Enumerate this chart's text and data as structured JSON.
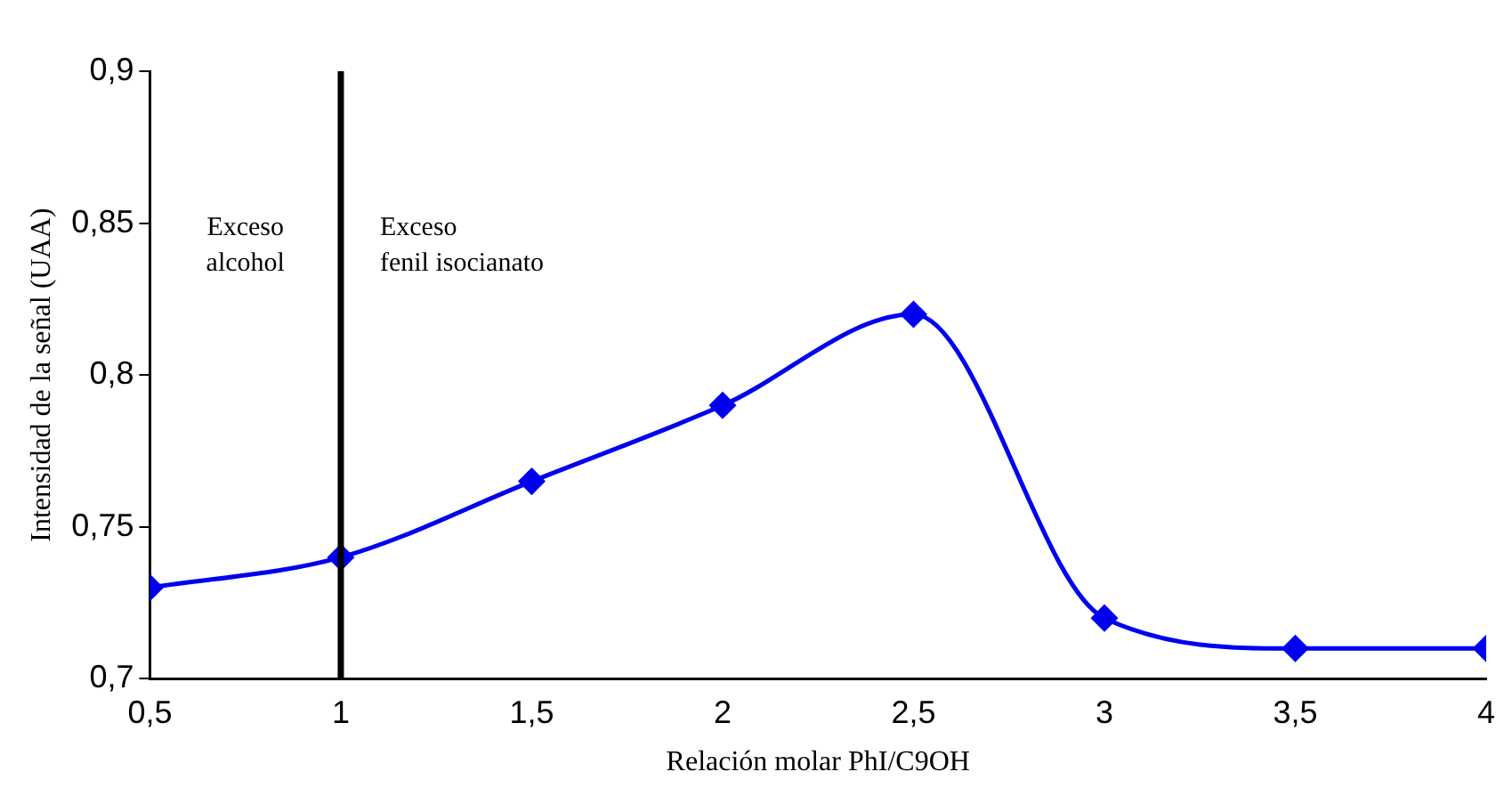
{
  "chart_data": {
    "type": "line",
    "xlabel": "Relación molar PhI/C9OH",
    "ylabel": "Intensidad de la señal (UAA)",
    "x": [
      0.5,
      1,
      1.5,
      2,
      2.5,
      3,
      3.5,
      4
    ],
    "series": [
      {
        "color": "#0000ee",
        "values": [
          0.73,
          0.74,
          0.765,
          0.79,
          0.82,
          0.72,
          0.71,
          0.71
        ]
      }
    ],
    "xlim": [
      0.5,
      4
    ],
    "ylim": [
      0.7,
      0.9
    ],
    "xticks": [
      {
        "value": 0.5,
        "label": "0,5"
      },
      1,
      {
        "value": 1.5,
        "label": "1,5"
      },
      2,
      {
        "value": 2.5,
        "label": "2,5"
      },
      3,
      {
        "value": 3.5,
        "label": "3,5"
      },
      4
    ],
    "yticks": [
      {
        "value": 0.7,
        "label": "0,7"
      },
      {
        "value": 0.75,
        "label": "0,75"
      },
      {
        "value": 0.8,
        "label": "0,8"
      },
      {
        "value": 0.85,
        "label": "0,85"
      },
      {
        "value": 0.9,
        "label": "0,9"
      }
    ],
    "ref_lines": [
      {
        "axis": "x",
        "value": 1,
        "color": "#000000"
      }
    ],
    "annotations": [
      "Exceso\nalcohol",
      "Exceso\nfenil isocianato"
    ],
    "grid": false,
    "legend": false,
    "marker": "diamond",
    "line_style": "solid"
  }
}
